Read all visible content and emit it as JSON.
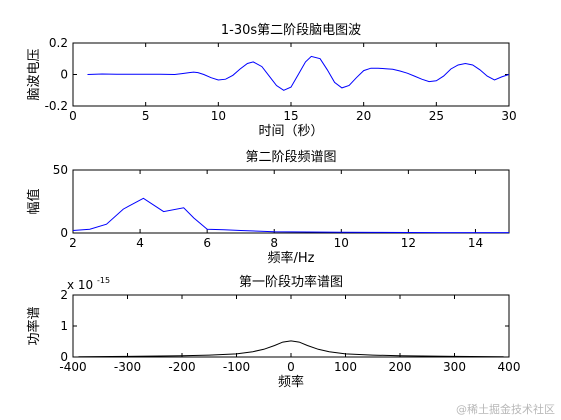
{
  "watermark": "@稀土掘金技术社区",
  "chart_data": [
    {
      "type": "line",
      "title": "1-30s第二阶段脑电图波",
      "xlabel": "时间（秒）",
      "ylabel": "脑波电压",
      "xlim": [
        0,
        30
      ],
      "ylim": [
        -0.2,
        0.2
      ],
      "xticks": [
        0,
        5,
        10,
        15,
        20,
        25,
        30
      ],
      "yticks": [
        -0.2,
        0,
        0.2
      ],
      "ytick_labels": [
        "-0.2",
        "0",
        "0.2"
      ],
      "color": "#0000ff",
      "x": [
        1,
        2,
        3,
        4,
        5,
        6,
        7,
        7.5,
        8,
        8.3,
        8.6,
        9,
        9.5,
        10,
        10.5,
        11,
        11.5,
        12,
        12.4,
        13,
        13.5,
        14,
        14.5,
        15,
        15.5,
        16,
        16.4,
        17,
        17.5,
        18,
        18.5,
        19,
        19.5,
        20,
        20.5,
        21,
        21.5,
        22,
        22.5,
        23,
        23.5,
        24,
        24.5,
        25,
        25.5,
        26,
        26.5,
        27,
        27.5,
        28,
        28.5,
        29,
        29.5,
        30
      ],
      "y": [
        0,
        0.003,
        0.002,
        0.002,
        0.001,
        0.001,
        0,
        0.006,
        0.012,
        0.015,
        0.012,
        0,
        -0.02,
        -0.035,
        -0.03,
        -0.005,
        0.035,
        0.07,
        0.08,
        0.05,
        -0.01,
        -0.07,
        -0.1,
        -0.08,
        0,
        0.08,
        0.115,
        0.1,
        0.03,
        -0.05,
        -0.085,
        -0.07,
        -0.02,
        0.025,
        0.04,
        0.04,
        0.037,
        0.033,
        0.022,
        0.008,
        -0.01,
        -0.03,
        -0.045,
        -0.04,
        -0.01,
        0.035,
        0.06,
        0.07,
        0.06,
        0.03,
        -0.01,
        -0.035,
        -0.015,
        0
      ]
    },
    {
      "type": "line",
      "title": "第二阶段频谱图",
      "xlabel": "频率/Hz",
      "ylabel": "幅值",
      "xlim": [
        2,
        15
      ],
      "ylim": [
        0,
        50
      ],
      "xticks": [
        2,
        4,
        6,
        8,
        10,
        12,
        14
      ],
      "yticks": [
        0,
        50
      ],
      "color": "#0000ff",
      "x": [
        2,
        2.5,
        3,
        3.5,
        4.1,
        4.7,
        5.3,
        5.6,
        6,
        6.5,
        7,
        8,
        9,
        10,
        11,
        12,
        13,
        14,
        15
      ],
      "y": [
        2,
        3,
        7,
        19,
        27.5,
        17,
        20,
        12,
        3,
        2.5,
        2,
        1,
        0.8,
        0.6,
        0.5,
        0.4,
        0.3,
        0.3,
        0.3
      ]
    },
    {
      "type": "line",
      "title": "第一阶段功率谱图",
      "xlabel": "频率",
      "ylabel": "功率谱",
      "xlim": [
        -400,
        400
      ],
      "ylim": [
        0,
        2
      ],
      "xticks": [
        -400,
        -300,
        -200,
        -100,
        0,
        100,
        200,
        300,
        400
      ],
      "yticks": [
        0,
        1,
        2
      ],
      "scale_label": "x 10",
      "scale_exponent": "-15",
      "color": "#000000",
      "x": [
        -390,
        -300,
        -200,
        -150,
        -100,
        -70,
        -50,
        -30,
        -15,
        0,
        15,
        30,
        50,
        70,
        100,
        150,
        200,
        300,
        390
      ],
      "y": [
        0.01,
        0.02,
        0.04,
        0.06,
        0.1,
        0.17,
        0.25,
        0.37,
        0.48,
        0.52,
        0.48,
        0.37,
        0.25,
        0.17,
        0.1,
        0.06,
        0.04,
        0.02,
        0.01
      ]
    }
  ]
}
